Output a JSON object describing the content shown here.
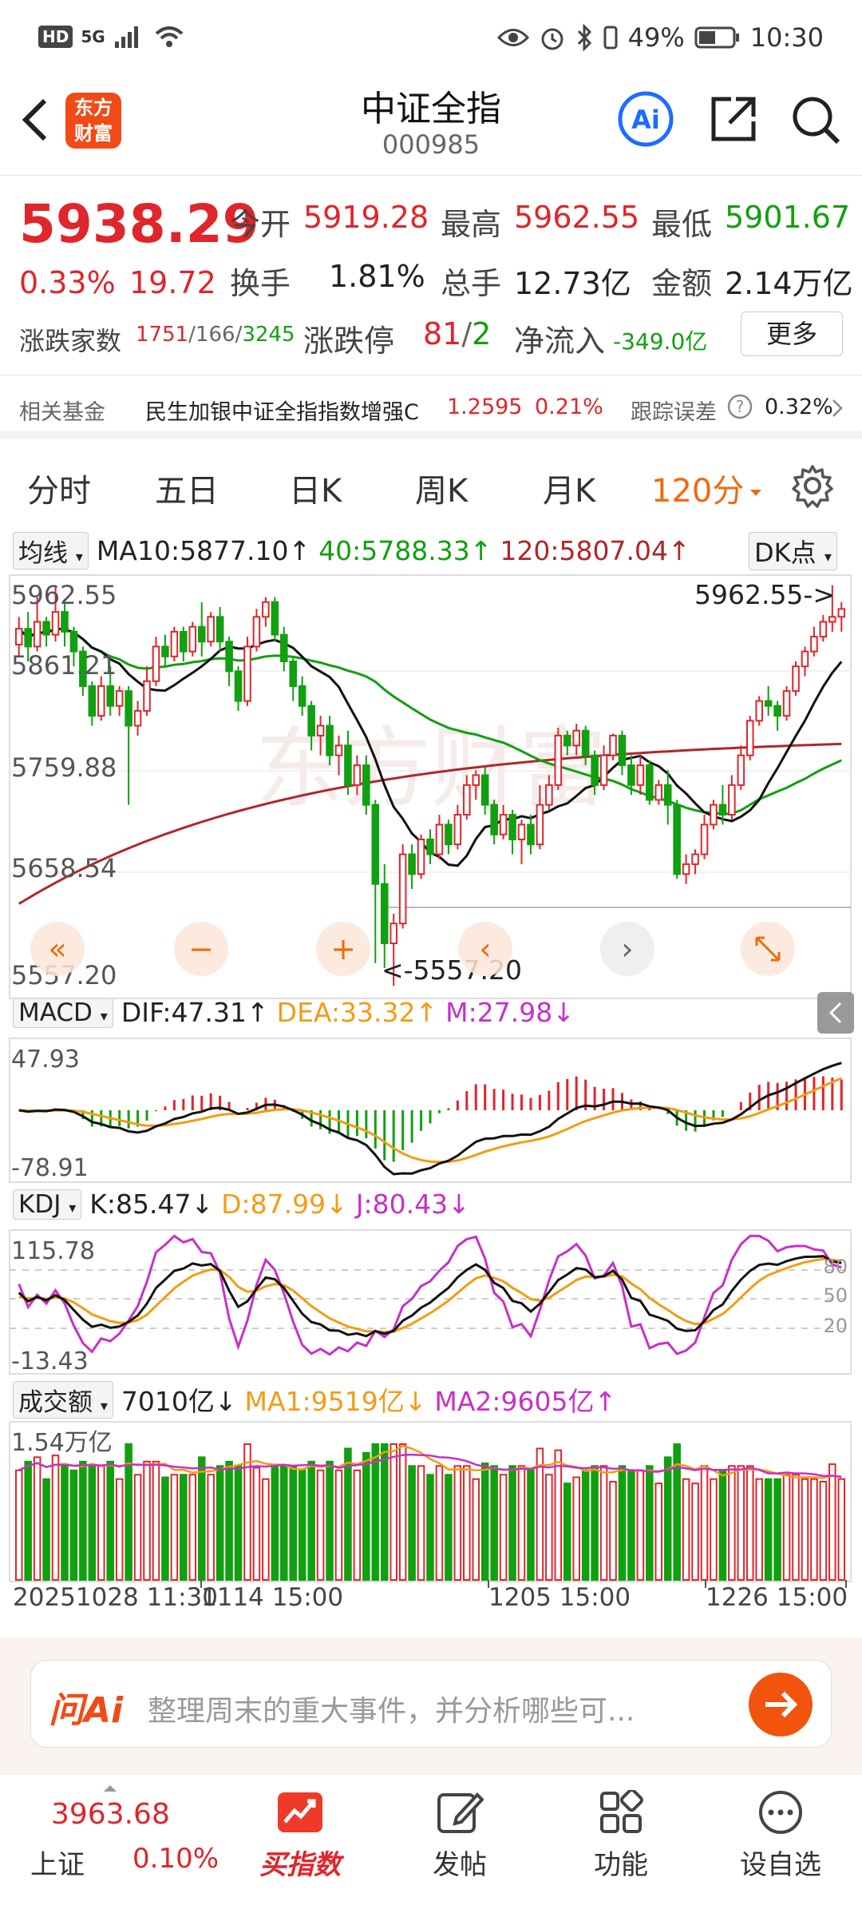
{
  "status": {
    "hd": "HD",
    "net": "5G",
    "battery": "49%",
    "time": "10:30"
  },
  "header": {
    "logo": "东方财富",
    "title": "中证全指",
    "code": "000985"
  },
  "quote": {
    "price": "5938.29",
    "change_pct": "0.33%",
    "change": "19.72",
    "open_label": "今开",
    "open": "5919.28",
    "high_label": "最高",
    "high": "5962.55",
    "low_label": "最低",
    "low": "5901.67",
    "turnover_label": "换手",
    "turnover": "1.81%",
    "volume_label": "总手",
    "volume": "12.73亿",
    "amount_label": "金额",
    "amount": "2.14万亿",
    "breadth_label": "涨跌家数",
    "up": "1751",
    "flat": "166",
    "down": "3245",
    "limit_label": "涨跌停",
    "limit_up": "81",
    "limit_down": "2",
    "netflow_label": "净流入",
    "netflow": "-349.0亿",
    "more": "更多"
  },
  "fund": {
    "label": "相关基金",
    "name": "民生加银中证全指指数增强C",
    "nav": "1.2595",
    "pct": "0.21%",
    "err_label": "跟踪误差",
    "err": "0.32%"
  },
  "tabs": [
    "分时",
    "五日",
    "日K",
    "周K",
    "月K",
    "120分"
  ],
  "indicators": {
    "ma_sel": "均线",
    "ma10": "MA10:5877.10",
    "ma40": "40:5788.33",
    "ma120": "120:5807.04",
    "dk": "DK点",
    "macd_sel": "MACD",
    "dif": "DIF:47.31",
    "dea": "DEA:33.32",
    "m": "M:27.98",
    "kdj_sel": "KDJ",
    "k": "K:85.47",
    "d": "D:87.99",
    "j": "J:80.43",
    "vol_sel": "成交额",
    "vol": "7010亿",
    "vma1": "MA1:9519亿",
    "vma2": "MA2:9605亿"
  },
  "axis": {
    "price_ticks": [
      "5962.55",
      "5861.21",
      "5759.88",
      "5658.54",
      "5557.20"
    ],
    "high_marker": "5962.55->",
    "low_marker": "<-5557.20",
    "macd_ticks": [
      "47.93",
      "-78.91"
    ],
    "kdj_ticks": [
      "115.78",
      "-13.43"
    ],
    "kdj_levels": [
      "80",
      "50",
      "20"
    ],
    "vol_tick": "1.54万亿",
    "dates": [
      "20251028 11:30",
      "1114 15:00",
      "1205 15:00",
      "1226 15:00"
    ]
  },
  "ai": {
    "logo": "问Ai",
    "placeholder": "整理周末的重大事件，并分析哪些可..."
  },
  "bottom": {
    "index_value": "3963.68",
    "index_name": "上证",
    "index_pct": "0.10%",
    "nav": [
      "买指数",
      "发帖",
      "功能",
      "设自选"
    ]
  },
  "colors": {
    "up": "#e0252b",
    "down": "#10a010",
    "ma10": "#111111",
    "ma40": "#10a010",
    "ma120": "#b0262a",
    "dea": "#f39c12",
    "macd_m": "#c830c8",
    "accent": "#f24a16"
  },
  "chart_data": {
    "type": "candlestick",
    "interval": "120分",
    "price_range": [
      5557.2,
      5962.55
    ],
    "candles": [
      [
        5902,
        5918,
        5890,
        5930
      ],
      [
        5918,
        5900,
        5885,
        5935
      ],
      [
        5900,
        5925,
        5895,
        5950
      ],
      [
        5925,
        5912,
        5900,
        5930
      ],
      [
        5912,
        5935,
        5905,
        5962
      ],
      [
        5935,
        5915,
        5900,
        5945
      ],
      [
        5915,
        5895,
        5880,
        5920
      ],
      [
        5895,
        5860,
        5850,
        5900
      ],
      [
        5860,
        5830,
        5820,
        5865
      ],
      [
        5830,
        5860,
        5825,
        5870
      ],
      [
        5860,
        5840,
        5830,
        5880
      ],
      [
        5840,
        5855,
        5830,
        5860
      ],
      [
        5855,
        5820,
        5740,
        5860
      ],
      [
        5820,
        5835,
        5810,
        5845
      ],
      [
        5835,
        5865,
        5830,
        5880
      ],
      [
        5865,
        5900,
        5860,
        5910
      ],
      [
        5900,
        5890,
        5880,
        5912
      ],
      [
        5890,
        5915,
        5885,
        5920
      ],
      [
        5915,
        5895,
        5885,
        5920
      ],
      [
        5895,
        5920,
        5890,
        5925
      ],
      [
        5920,
        5905,
        5890,
        5945
      ],
      [
        5905,
        5930,
        5900,
        5935
      ],
      [
        5930,
        5905,
        5895,
        5940
      ],
      [
        5905,
        5875,
        5860,
        5910
      ],
      [
        5875,
        5845,
        5835,
        5880
      ],
      [
        5845,
        5900,
        5840,
        5910
      ],
      [
        5900,
        5930,
        5895,
        5938
      ],
      [
        5930,
        5945,
        5920,
        5950
      ],
      [
        5945,
        5912,
        5905,
        5950
      ],
      [
        5912,
        5885,
        5875,
        5920
      ],
      [
        5885,
        5860,
        5845,
        5890
      ],
      [
        5860,
        5840,
        5830,
        5870
      ],
      [
        5840,
        5810,
        5795,
        5845
      ],
      [
        5810,
        5820,
        5790,
        5830
      ],
      [
        5820,
        5790,
        5780,
        5830
      ],
      [
        5790,
        5800,
        5770,
        5810
      ],
      [
        5800,
        5760,
        5750,
        5815
      ],
      [
        5760,
        5780,
        5750,
        5790
      ],
      [
        5780,
        5740,
        5730,
        5790
      ],
      [
        5740,
        5660,
        5580,
        5745
      ],
      [
        5660,
        5600,
        5575,
        5680
      ],
      [
        5600,
        5620,
        5557,
        5630
      ],
      [
        5620,
        5690,
        5615,
        5700
      ],
      [
        5690,
        5670,
        5655,
        5700
      ],
      [
        5670,
        5705,
        5665,
        5710
      ],
      [
        5705,
        5690,
        5680,
        5715
      ],
      [
        5690,
        5720,
        5685,
        5730
      ],
      [
        5720,
        5700,
        5690,
        5725
      ],
      [
        5700,
        5730,
        5695,
        5740
      ],
      [
        5730,
        5760,
        5725,
        5770
      ],
      [
        5760,
        5770,
        5745,
        5775
      ],
      [
        5770,
        5740,
        5730,
        5778
      ],
      [
        5740,
        5710,
        5700,
        5745
      ],
      [
        5710,
        5730,
        5705,
        5740
      ],
      [
        5730,
        5705,
        5690,
        5735
      ],
      [
        5705,
        5720,
        5680,
        5725
      ],
      [
        5720,
        5700,
        5690,
        5730
      ],
      [
        5700,
        5740,
        5695,
        5760
      ],
      [
        5740,
        5760,
        5735,
        5770
      ],
      [
        5760,
        5810,
        5755,
        5818
      ],
      [
        5810,
        5800,
        5790,
        5815
      ],
      [
        5800,
        5815,
        5790,
        5822
      ],
      [
        5815,
        5790,
        5780,
        5820
      ],
      [
        5790,
        5760,
        5750,
        5795
      ],
      [
        5760,
        5790,
        5755,
        5800
      ],
      [
        5790,
        5810,
        5785,
        5812
      ],
      [
        5810,
        5780,
        5770,
        5815
      ],
      [
        5780,
        5760,
        5750,
        5790
      ],
      [
        5760,
        5780,
        5750,
        5790
      ],
      [
        5780,
        5745,
        5740,
        5785
      ],
      [
        5745,
        5760,
        5740,
        5765
      ],
      [
        5760,
        5740,
        5720,
        5775
      ],
      [
        5740,
        5670,
        5665,
        5745
      ],
      [
        5670,
        5680,
        5660,
        5690
      ],
      [
        5680,
        5690,
        5670,
        5695
      ],
      [
        5690,
        5720,
        5685,
        5730
      ],
      [
        5720,
        5740,
        5715,
        5745
      ],
      [
        5740,
        5730,
        5720,
        5760
      ],
      [
        5730,
        5760,
        5725,
        5770
      ],
      [
        5760,
        5790,
        5755,
        5800
      ],
      [
        5790,
        5825,
        5785,
        5830
      ],
      [
        5825,
        5845,
        5820,
        5850
      ],
      [
        5845,
        5840,
        5830,
        5860
      ],
      [
        5840,
        5830,
        5815,
        5845
      ],
      [
        5830,
        5855,
        5825,
        5860
      ],
      [
        5855,
        5880,
        5850,
        5885
      ],
      [
        5880,
        5895,
        5870,
        5900
      ],
      [
        5895,
        5910,
        5890,
        5920
      ],
      [
        5910,
        5925,
        5905,
        5932
      ],
      [
        5925,
        5930,
        5915,
        5962
      ],
      [
        5930,
        5938,
        5915,
        5945
      ]
    ]
  }
}
